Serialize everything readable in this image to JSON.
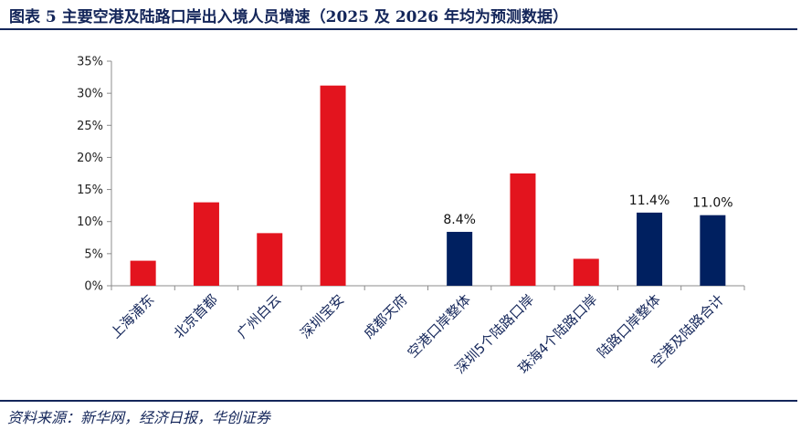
{
  "header": {
    "title": "图表 5 主要空港及陆路口岸出入境人员增速（2025 及 2026 年均为预测数据）"
  },
  "footer": {
    "source": "资料来源：新华网，经济日报，华创证券"
  },
  "colors": {
    "red": "#e3141e",
    "navy": "#002060",
    "axis": "#8c8c8c",
    "text": "#14265a"
  },
  "chart_data": {
    "type": "bar",
    "categories": [
      "上海浦东",
      "北京首都",
      "广州白云",
      "深圳宝安",
      "成都天府",
      "空港口岸整体",
      "深圳5个陆路口岸",
      "珠海4个陆路口岸",
      "陆路口岸整体",
      "空港及陆路合计"
    ],
    "values": [
      3.9,
      13.0,
      8.2,
      31.2,
      0.0,
      8.4,
      17.5,
      4.2,
      11.4,
      11.0
    ],
    "bar_colors": [
      "red",
      "red",
      "red",
      "red",
      "red",
      "navy",
      "red",
      "red",
      "navy",
      "navy"
    ],
    "data_labels": [
      "",
      "",
      "",
      "",
      "",
      "8.4%",
      "",
      "",
      "11.4%",
      "11.0%"
    ],
    "y_ticks": [
      "0%",
      "5%",
      "10%",
      "15%",
      "20%",
      "25%",
      "30%",
      "35%"
    ],
    "ylim": [
      0,
      35
    ],
    "grid": false,
    "legend": "none"
  }
}
